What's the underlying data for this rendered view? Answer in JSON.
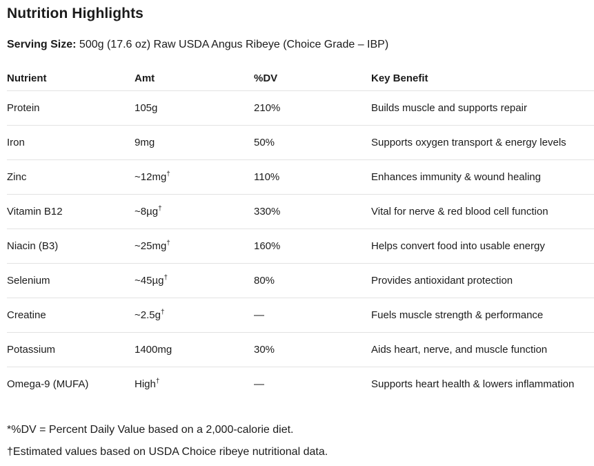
{
  "page": {
    "title": "Nutrition Highlights",
    "serving": {
      "label": "Serving Size:",
      "value": " 500g (17.6 oz) Raw USDA Angus Ribeye (Choice Grade – IBP)"
    }
  },
  "table": {
    "headers": [
      "Nutrient",
      "Amt",
      "%DV",
      "Key Benefit"
    ],
    "rows": [
      {
        "nutrient": "Protein",
        "amt": "105g",
        "amt_sup": "",
        "dv": "210%",
        "benefit": "Builds muscle and supports repair"
      },
      {
        "nutrient": "Iron",
        "amt": "9mg",
        "amt_sup": "",
        "dv": "50%",
        "benefit": "Supports oxygen transport & energy levels"
      },
      {
        "nutrient": "Zinc",
        "amt": "~12mg",
        "amt_sup": "†",
        "dv": "110%",
        "benefit": "Enhances immunity & wound healing"
      },
      {
        "nutrient": "Vitamin B12",
        "amt": "~8µg",
        "amt_sup": "†",
        "dv": "330%",
        "benefit": "Vital for nerve & red blood cell function"
      },
      {
        "nutrient": "Niacin (B3)",
        "amt": "~25mg",
        "amt_sup": "†",
        "dv": "160%",
        "benefit": "Helps convert food into usable energy"
      },
      {
        "nutrient": "Selenium",
        "amt": "~45µg",
        "amt_sup": "†",
        "dv": "80%",
        "benefit": "Provides antioxidant protection"
      },
      {
        "nutrient": "Creatine",
        "amt": "~2.5g",
        "amt_sup": "†",
        "dv": "—",
        "benefit": "Fuels muscle strength & performance"
      },
      {
        "nutrient": "Potassium",
        "amt": "1400mg",
        "amt_sup": "",
        "dv": "30%",
        "benefit": "Aids heart, nerve, and muscle function"
      },
      {
        "nutrient": "Omega-9 (MUFA)",
        "amt": "High",
        "amt_sup": "†",
        "dv": "—",
        "benefit": "Supports heart health & lowers inflammation"
      }
    ]
  },
  "footnotes": [
    "*%DV = Percent Daily Value based on a 2,000-calorie diet.",
    "†Estimated values based on USDA Choice ribeye nutritional data."
  ],
  "colors": {
    "text": "#1b1b1b",
    "divider": "#e2e2e2",
    "background": "#ffffff"
  }
}
